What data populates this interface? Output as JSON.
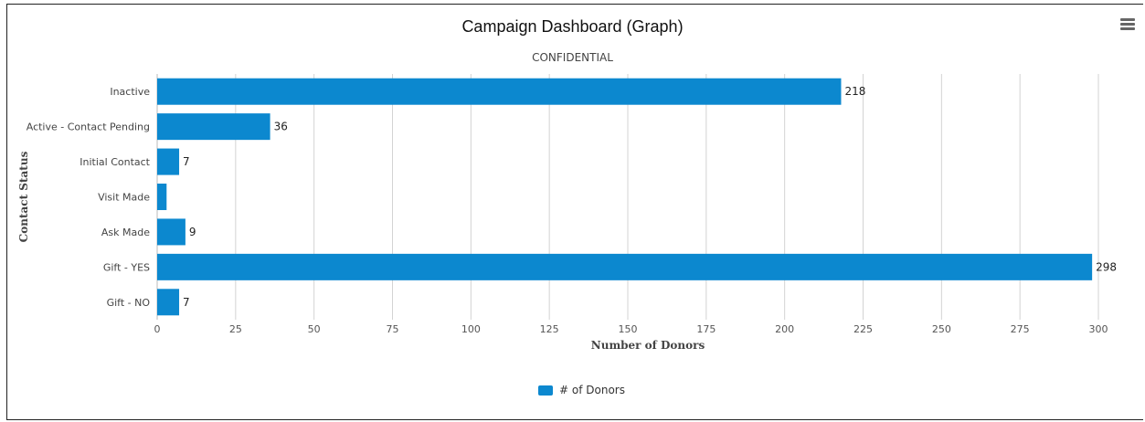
{
  "header": {
    "title": "Campaign Dashboard (Graph)",
    "subtitle": "CONFIDENTIAL",
    "menu_icon": "hamburger-menu-icon"
  },
  "colors": {
    "bar": "#0c88cf",
    "grid": "#d3d3d3",
    "axis_text": "#555555"
  },
  "chart_data": {
    "type": "bar",
    "orientation": "horizontal",
    "title": "Campaign Dashboard (Graph)",
    "subtitle": "CONFIDENTIAL",
    "categories": [
      "Inactive",
      "Active - Contact Pending",
      "Initial Contact",
      "Visit Made",
      "Ask Made",
      "Gift - YES",
      "Gift - NO"
    ],
    "series": [
      {
        "name": "# of Donors",
        "values": [
          218,
          36,
          7,
          3,
          9,
          298,
          7
        ],
        "labels": [
          "218",
          "36",
          "7",
          "",
          "9",
          "298",
          "7"
        ]
      }
    ],
    "xlabel": "Number of Donors",
    "ylabel": "Contact Status",
    "xlim": [
      0,
      300
    ],
    "xticks": [
      "0",
      "25",
      "50",
      "75",
      "100",
      "125",
      "150",
      "175",
      "200",
      "225",
      "250",
      "275",
      "300"
    ],
    "grid": true,
    "legend": "bottom-center"
  },
  "legend": {
    "label": "# of Donors"
  }
}
